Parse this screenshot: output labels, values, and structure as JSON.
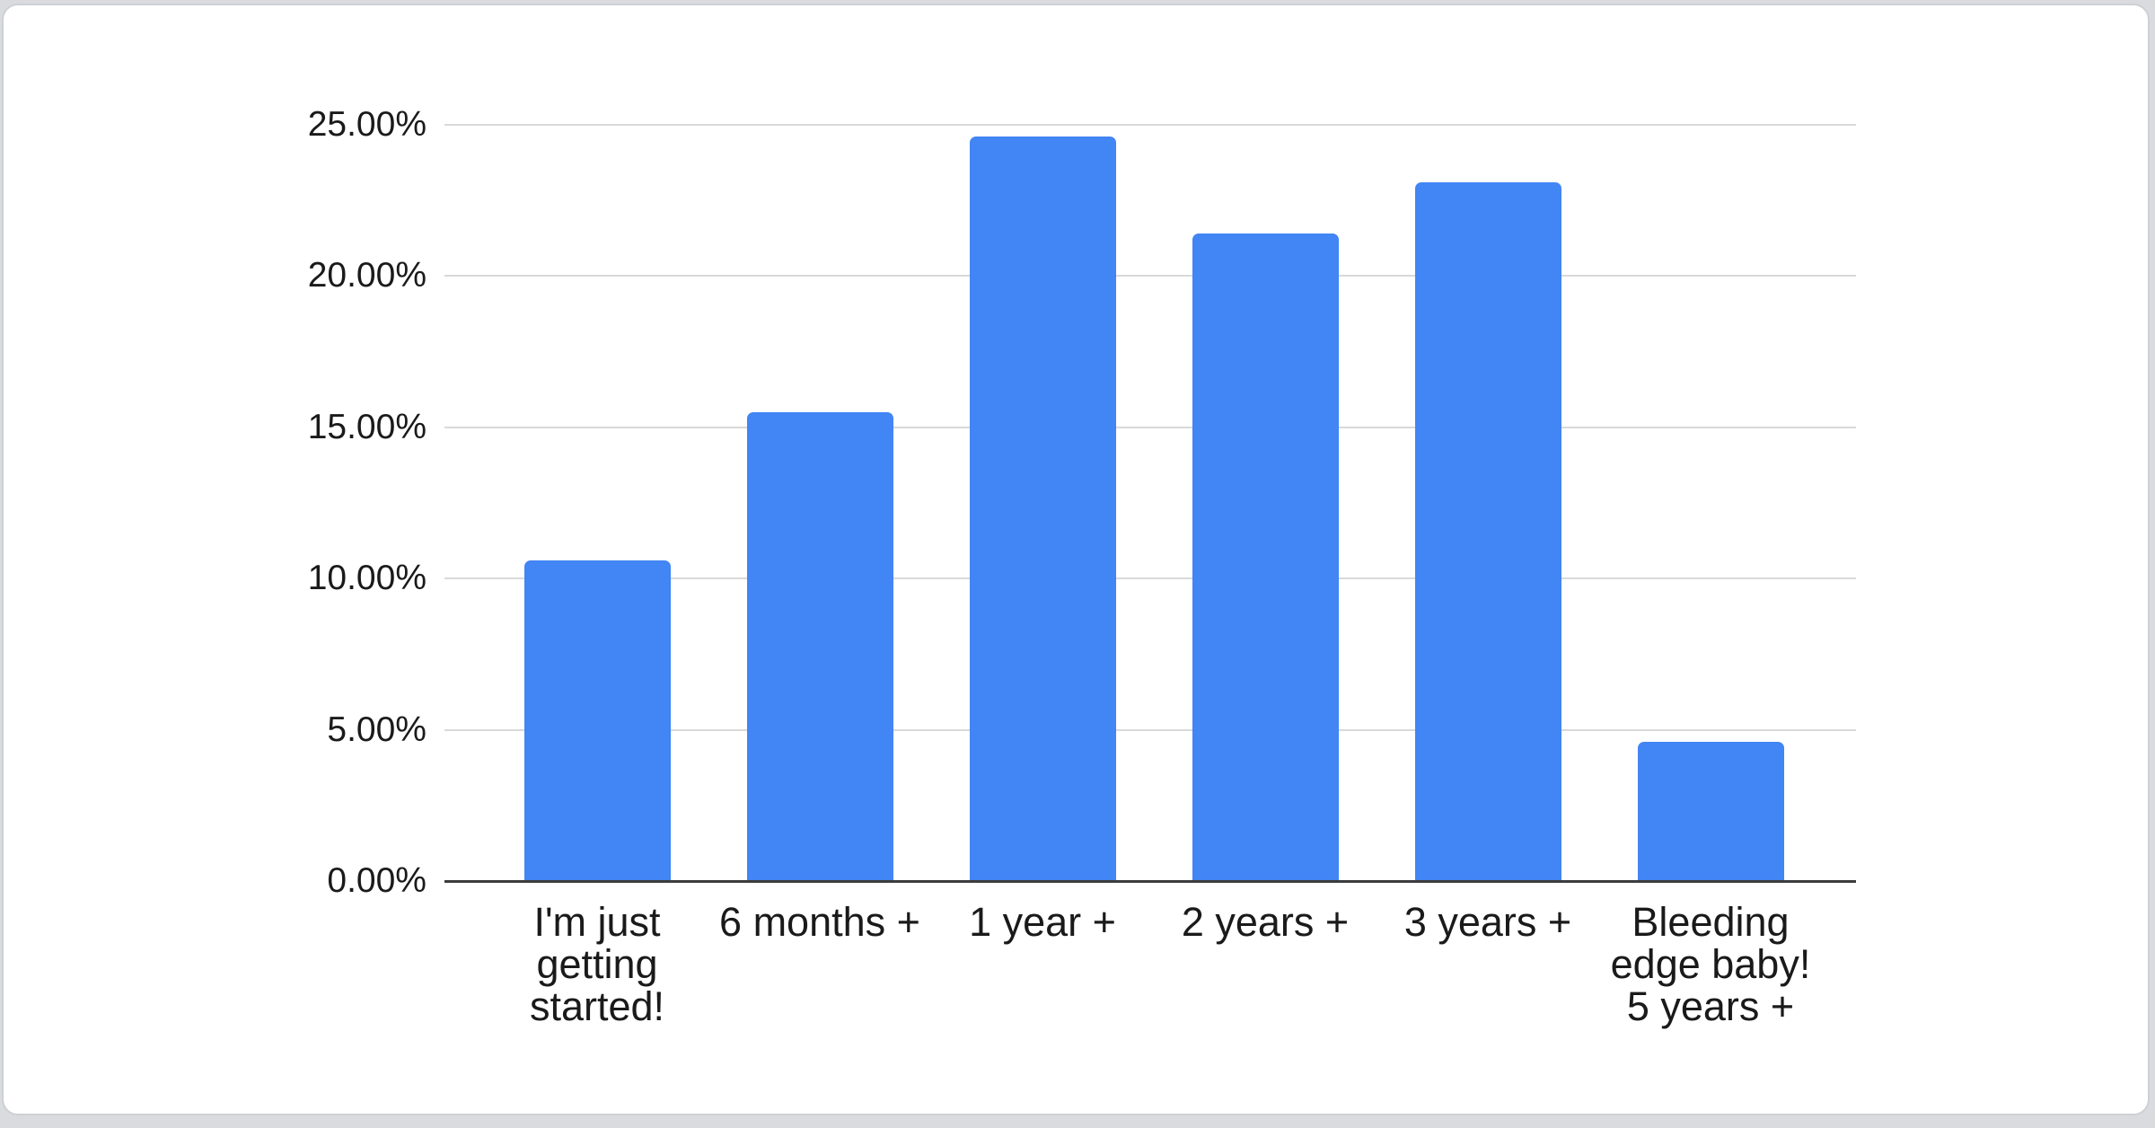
{
  "canvas": {
    "background": "#d9dbdf",
    "card_background": "#ffffff",
    "card_border": "#cdd0d4"
  },
  "chart_data": {
    "type": "bar",
    "categories": [
      "I'm just getting started!",
      "6 months +",
      "1 year +",
      "2 years +",
      "3 years +",
      "Bleeding edge baby! 5 years +"
    ],
    "values": [
      10.6,
      15.5,
      24.6,
      21.4,
      23.1,
      4.6
    ],
    "value_unit": "percent",
    "series_color": "#4285f4",
    "ylim": [
      0,
      25
    ],
    "y_ticks": [
      {
        "value": 0,
        "label": "0.00%"
      },
      {
        "value": 5,
        "label": "5.00%"
      },
      {
        "value": 10,
        "label": "10.00%"
      },
      {
        "value": 15,
        "label": "15.00%"
      },
      {
        "value": 20,
        "label": "20.00%"
      },
      {
        "value": 25,
        "label": "25.00%"
      }
    ],
    "grid": true,
    "legend": "none",
    "gridline_color": "#d9d9d9",
    "axis_line_color": "#3c3c3c",
    "label_color": "#1a1a1a"
  }
}
